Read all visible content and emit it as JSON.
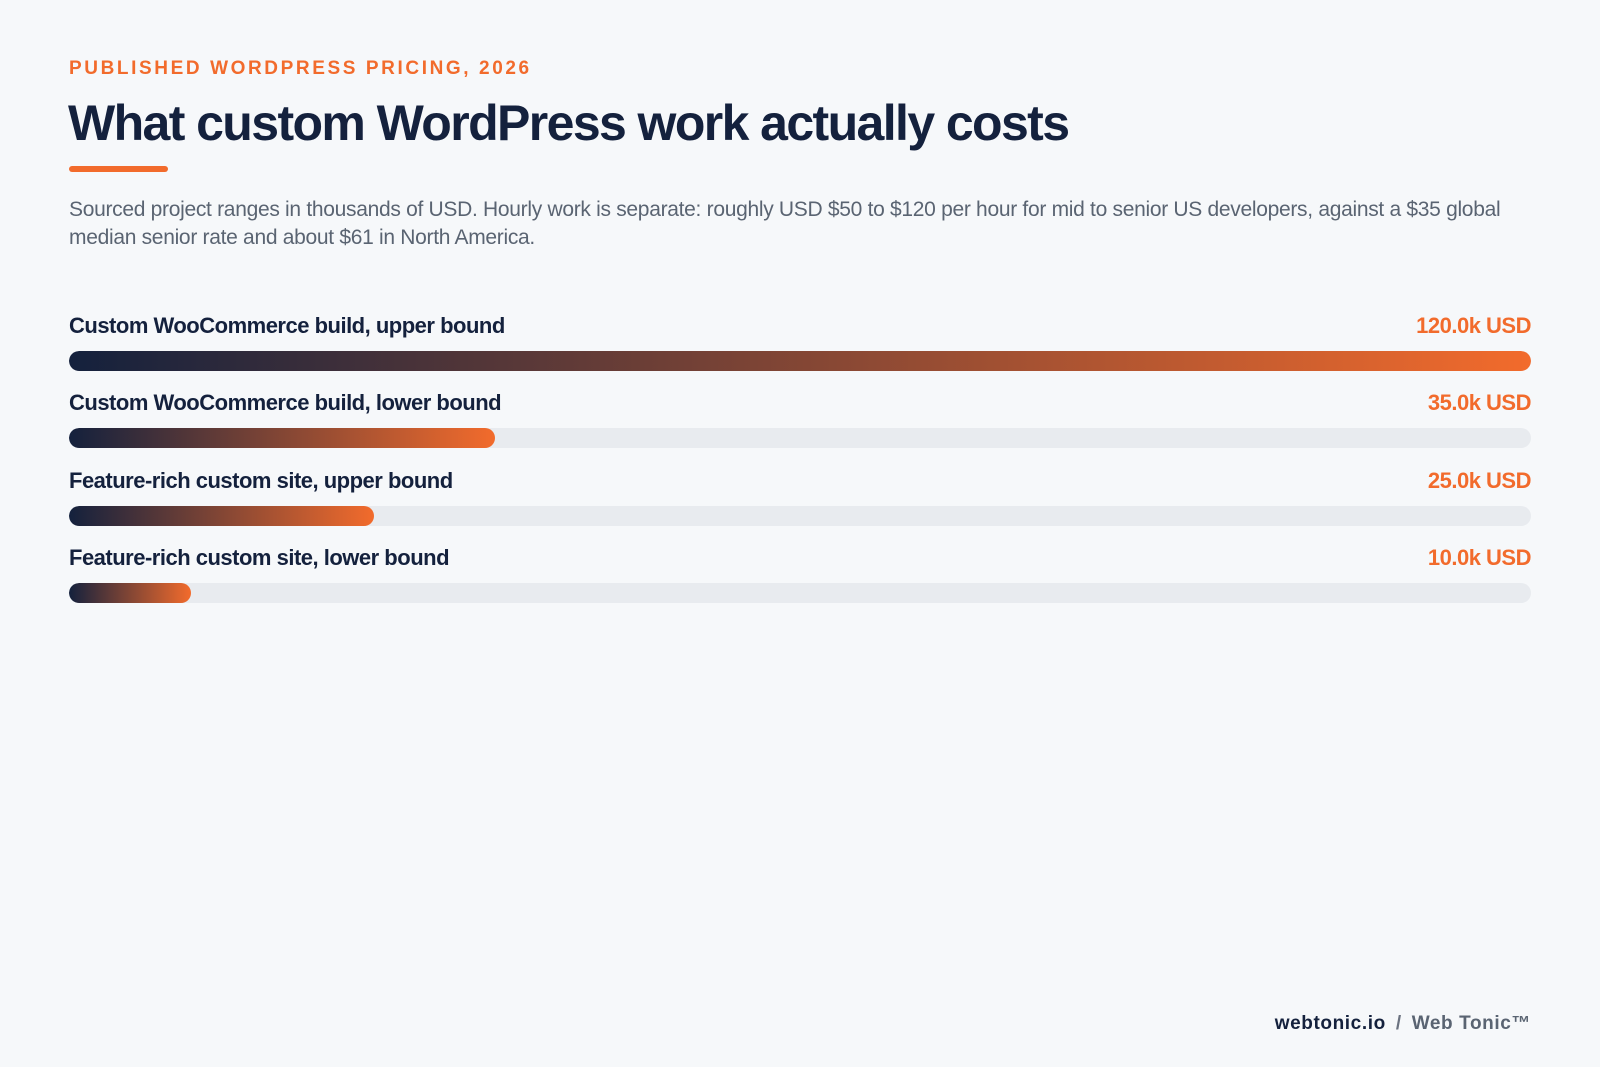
{
  "header": {
    "eyebrow": "PUBLISHED WORDPRESS PRICING, 2026",
    "title": "What custom WordPress work actually costs",
    "subtitle": "Sourced project ranges in thousands of USD. Hourly work is separate: roughly USD $50 to $120 per hour for mid to senior US developers, against a $35 global median senior rate and about $61 in North America."
  },
  "chart_data": {
    "type": "bar",
    "orientation": "horizontal",
    "unit": "k USD",
    "xlim": [
      0,
      120
    ],
    "grid": false,
    "categories": [
      "Custom WooCommerce build, upper bound",
      "Custom WooCommerce build, lower bound",
      "Feature-rich custom site, upper bound",
      "Feature-rich custom site, lower bound"
    ],
    "values": [
      120.0,
      35.0,
      25.0,
      10.0
    ],
    "value_labels": [
      "120.0k USD",
      "35.0k USD",
      "25.0k USD",
      "10.0k USD"
    ]
  },
  "colors": {
    "accent": "#f26b2c",
    "navy": "#14213d",
    "track": "#e8ebef",
    "background": "#f6f8fa"
  },
  "footer": {
    "site": "webtonic.io",
    "separator": "/",
    "brand": "Web Tonic™"
  }
}
